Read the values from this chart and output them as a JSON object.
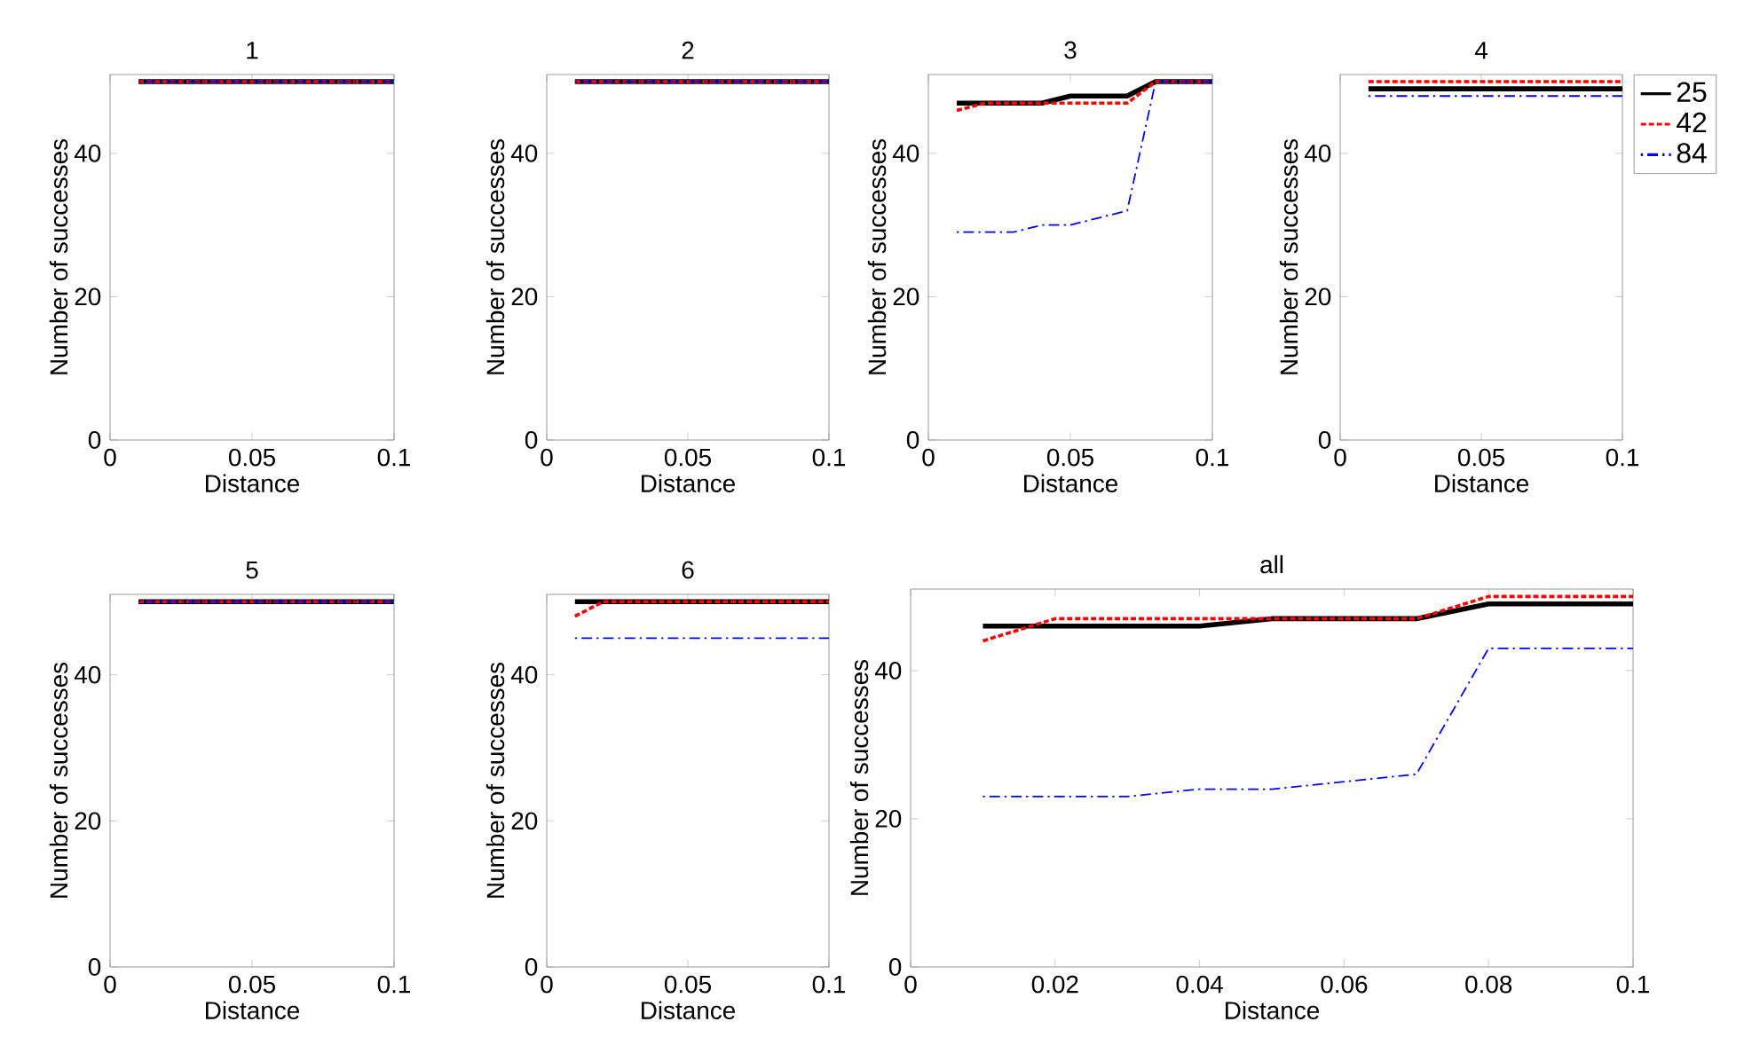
{
  "chart_data": [
    {
      "type": "line",
      "title": "1",
      "xlabel": "Distance",
      "ylabel": "Number of successes",
      "x": [
        0.01,
        0.02,
        0.03,
        0.04,
        0.05,
        0.06,
        0.07,
        0.08,
        0.09,
        0.1
      ],
      "xlim": [
        0,
        0.1
      ],
      "xticks": [
        0,
        0.05,
        0.1
      ],
      "ylim": [
        0,
        51
      ],
      "yticks": [
        0,
        20,
        40
      ],
      "series": [
        {
          "color": "#000000",
          "line_style": "solid",
          "values": [
            50,
            50,
            50,
            50,
            50,
            50,
            50,
            50,
            50,
            50
          ]
        },
        {
          "color": "#ff0000",
          "line_style": "dashed",
          "values": [
            50,
            50,
            50,
            50,
            50,
            50,
            50,
            50,
            50,
            50
          ]
        },
        {
          "color": "#0000ff",
          "line_style": "dashdot",
          "values": [
            50,
            50,
            50,
            50,
            50,
            50,
            50,
            50,
            50,
            50
          ]
        }
      ]
    },
    {
      "type": "line",
      "title": "2",
      "xlabel": "Distance",
      "ylabel": "Number of successes",
      "x": [
        0.01,
        0.02,
        0.03,
        0.04,
        0.05,
        0.06,
        0.07,
        0.08,
        0.09,
        0.1
      ],
      "xlim": [
        0,
        0.1
      ],
      "xticks": [
        0,
        0.05,
        0.1
      ],
      "ylim": [
        0,
        51
      ],
      "yticks": [
        0,
        20,
        40
      ],
      "series": [
        {
          "color": "#000000",
          "line_style": "solid",
          "values": [
            50,
            50,
            50,
            50,
            50,
            50,
            50,
            50,
            50,
            50
          ]
        },
        {
          "color": "#ff0000",
          "line_style": "dashed",
          "values": [
            50,
            50,
            50,
            50,
            50,
            50,
            50,
            50,
            50,
            50
          ]
        },
        {
          "color": "#0000ff",
          "line_style": "dashdot",
          "values": [
            50,
            50,
            50,
            50,
            50,
            50,
            50,
            50,
            50,
            50
          ]
        }
      ]
    },
    {
      "type": "line",
      "title": "3",
      "xlabel": "Distance",
      "ylabel": "Number of successes",
      "x": [
        0.01,
        0.02,
        0.03,
        0.04,
        0.05,
        0.06,
        0.07,
        0.08,
        0.09,
        0.1
      ],
      "xlim": [
        0,
        0.1
      ],
      "xticks": [
        0,
        0.05,
        0.1
      ],
      "ylim": [
        0,
        51
      ],
      "yticks": [
        0,
        20,
        40
      ],
      "series": [
        {
          "color": "#000000",
          "line_style": "solid",
          "values": [
            47,
            47,
            47,
            47,
            48,
            48,
            48,
            50,
            50,
            50
          ]
        },
        {
          "color": "#ff0000",
          "line_style": "dashed",
          "values": [
            46,
            47,
            47,
            47,
            47,
            47,
            47,
            50,
            50,
            50
          ]
        },
        {
          "color": "#0000ff",
          "line_style": "dashdot",
          "values": [
            29,
            29,
            29,
            30,
            30,
            31,
            32,
            50,
            50,
            50
          ]
        }
      ]
    },
    {
      "type": "line",
      "title": "4",
      "xlabel": "Distance",
      "ylabel": "Number of successes",
      "x": [
        0.01,
        0.02,
        0.03,
        0.04,
        0.05,
        0.06,
        0.07,
        0.08,
        0.09,
        0.1
      ],
      "xlim": [
        0,
        0.1
      ],
      "xticks": [
        0,
        0.05,
        0.1
      ],
      "ylim": [
        0,
        51
      ],
      "yticks": [
        0,
        20,
        40
      ],
      "legend": "right",
      "series": [
        {
          "name": "25",
          "color": "#000000",
          "line_style": "solid",
          "values": [
            49,
            49,
            49,
            49,
            49,
            49,
            49,
            49,
            49,
            49
          ]
        },
        {
          "name": "42",
          "color": "#ff0000",
          "line_style": "dashed",
          "values": [
            50,
            50,
            50,
            50,
            50,
            50,
            50,
            50,
            50,
            50
          ]
        },
        {
          "name": "84",
          "color": "#0000ff",
          "line_style": "dashdot",
          "values": [
            48,
            48,
            48,
            48,
            48,
            48,
            48,
            48,
            48,
            48
          ]
        }
      ]
    },
    {
      "type": "line",
      "title": "5",
      "xlabel": "Distance",
      "ylabel": "Number of successes",
      "x": [
        0.01,
        0.02,
        0.03,
        0.04,
        0.05,
        0.06,
        0.07,
        0.08,
        0.09,
        0.1
      ],
      "xlim": [
        0,
        0.1
      ],
      "xticks": [
        0,
        0.05,
        0.1
      ],
      "ylim": [
        0,
        51
      ],
      "yticks": [
        0,
        20,
        40
      ],
      "series": [
        {
          "color": "#000000",
          "line_style": "solid",
          "values": [
            50,
            50,
            50,
            50,
            50,
            50,
            50,
            50,
            50,
            50
          ]
        },
        {
          "color": "#ff0000",
          "line_style": "dashed",
          "values": [
            50,
            50,
            50,
            50,
            50,
            50,
            50,
            50,
            50,
            50
          ]
        },
        {
          "color": "#0000ff",
          "line_style": "dashdot",
          "values": [
            50,
            50,
            50,
            50,
            50,
            50,
            50,
            50,
            50,
            50
          ]
        }
      ]
    },
    {
      "type": "line",
      "title": "6",
      "xlabel": "Distance",
      "ylabel": "Number of successes",
      "x": [
        0.01,
        0.02,
        0.03,
        0.04,
        0.05,
        0.06,
        0.07,
        0.08,
        0.09,
        0.1
      ],
      "xlim": [
        0,
        0.1
      ],
      "xticks": [
        0,
        0.05,
        0.1
      ],
      "ylim": [
        0,
        51
      ],
      "yticks": [
        0,
        20,
        40
      ],
      "series": [
        {
          "color": "#000000",
          "line_style": "solid",
          "values": [
            50,
            50,
            50,
            50,
            50,
            50,
            50,
            50,
            50,
            50
          ]
        },
        {
          "color": "#ff0000",
          "line_style": "dashed",
          "values": [
            48,
            50,
            50,
            50,
            50,
            50,
            50,
            50,
            50,
            50
          ]
        },
        {
          "color": "#0000ff",
          "line_style": "dashdot",
          "values": [
            45,
            45,
            45,
            45,
            45,
            45,
            45,
            45,
            45,
            45
          ]
        }
      ]
    },
    {
      "type": "line",
      "title": "all",
      "xlabel": "Distance",
      "ylabel": "Number of successes",
      "x": [
        0.01,
        0.02,
        0.03,
        0.04,
        0.05,
        0.06,
        0.07,
        0.08,
        0.09,
        0.1
      ],
      "xlim": [
        0,
        0.1
      ],
      "xticks": [
        0,
        0.02,
        0.04,
        0.06,
        0.08,
        0.1
      ],
      "ylim": [
        0,
        51
      ],
      "yticks": [
        0,
        20,
        40
      ],
      "series": [
        {
          "color": "#000000",
          "line_style": "solid",
          "values": [
            46,
            46,
            46,
            46,
            47,
            47,
            47,
            49,
            49,
            49
          ]
        },
        {
          "color": "#ff0000",
          "line_style": "dashed",
          "values": [
            44,
            47,
            47,
            47,
            47,
            47,
            47,
            50,
            50,
            50
          ]
        },
        {
          "color": "#0000ff",
          "line_style": "dashdot",
          "values": [
            23,
            23,
            23,
            24,
            24,
            25,
            26,
            43,
            43,
            43
          ]
        }
      ]
    }
  ]
}
